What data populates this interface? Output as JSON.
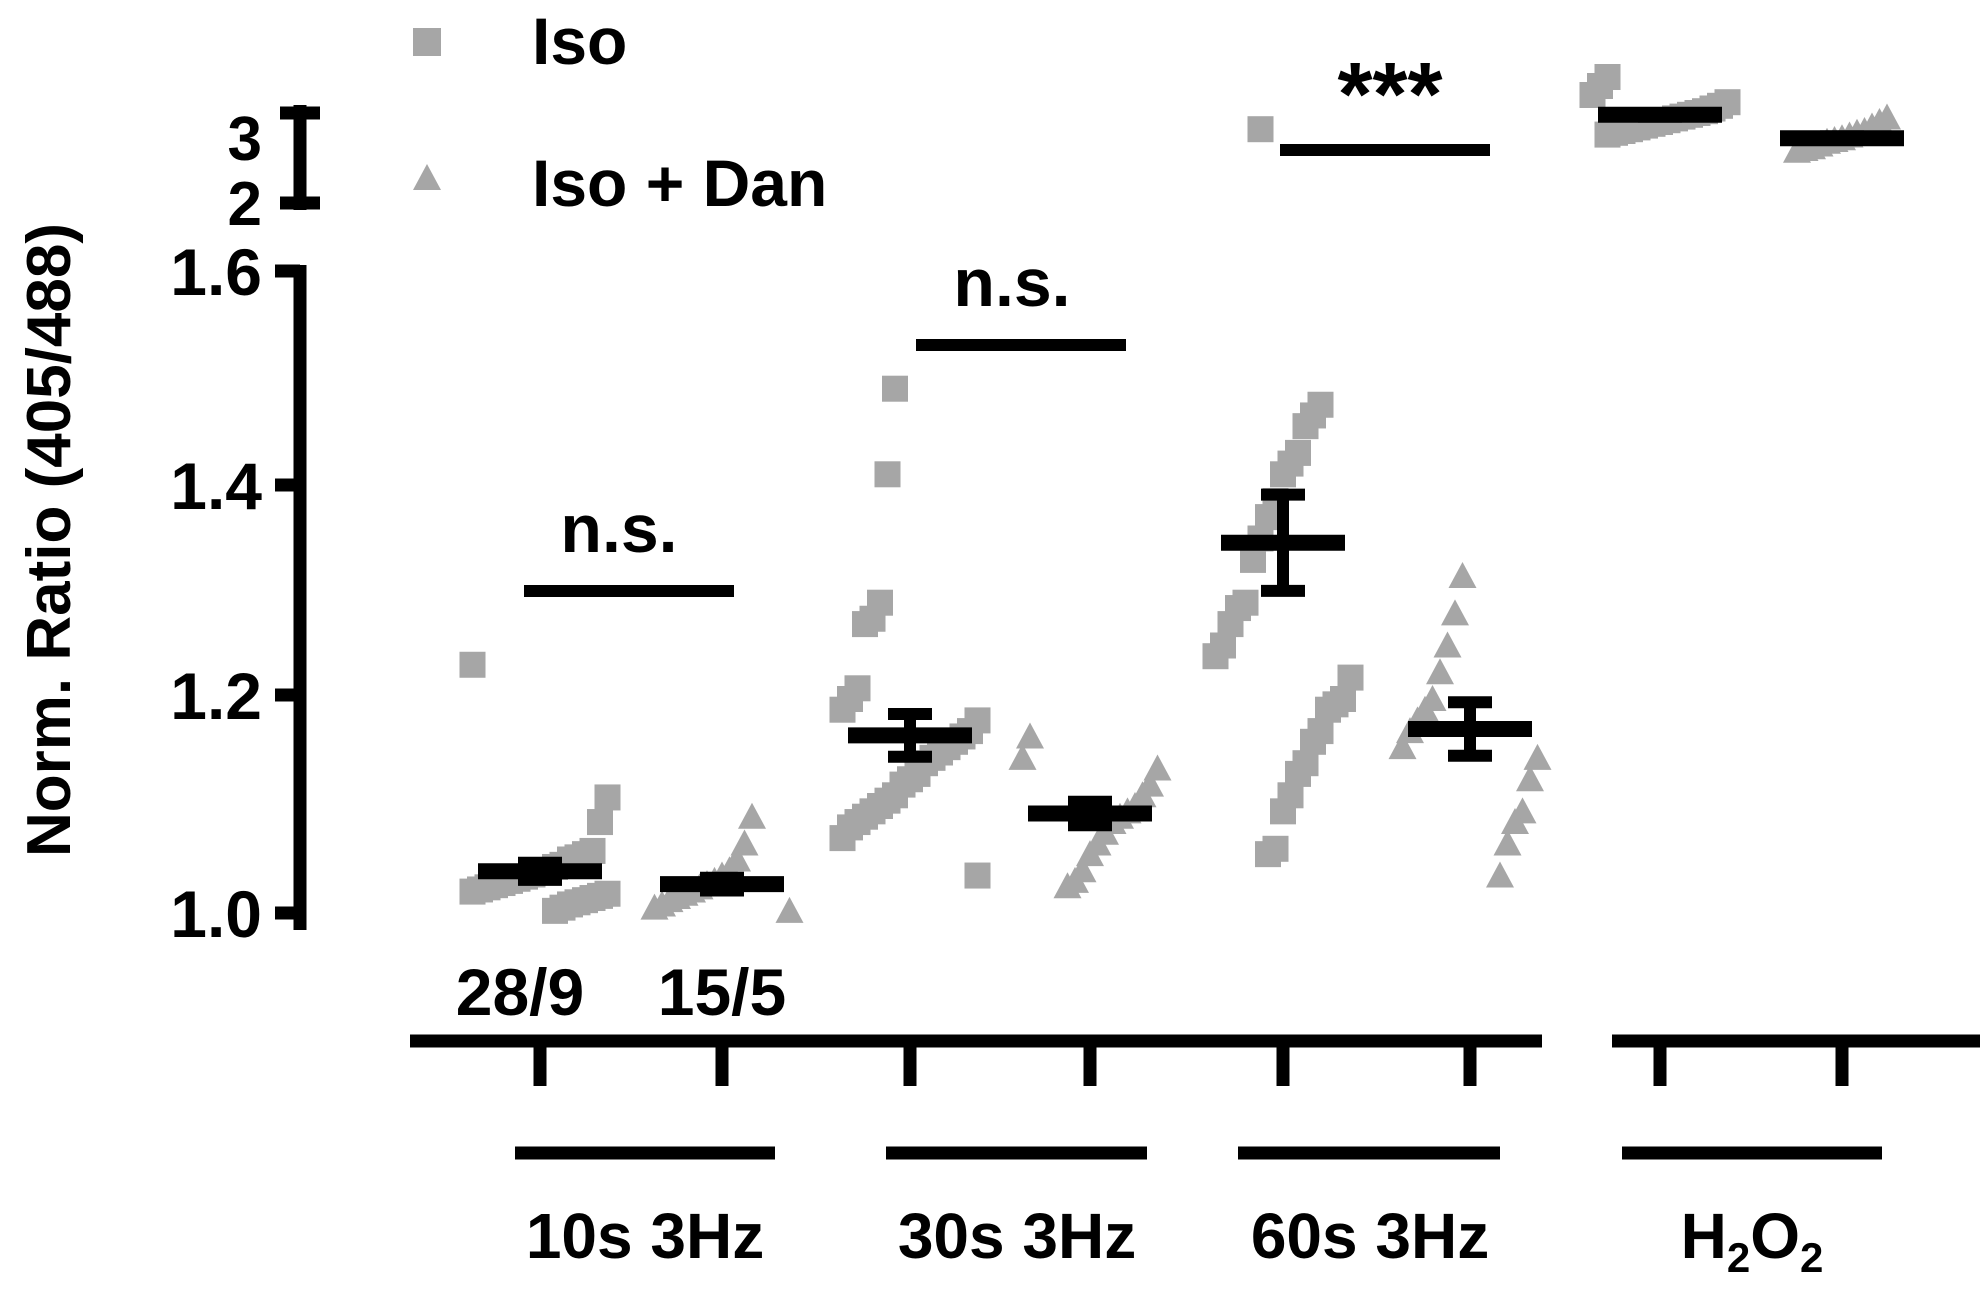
{
  "chart_data": {
    "type": "scatter",
    "ylabel": "Norm. Ratio (405/488)",
    "y_ticks_lower": [
      "1.0",
      "1.2",
      "1.4",
      "1.6"
    ],
    "y_ticks_upper": [
      "2",
      "3"
    ],
    "ylim_lower": [
      1.0,
      1.6
    ],
    "ylim_upper": [
      2,
      3
    ],
    "axis_break": true,
    "legend_position": "top-left",
    "legend": [
      {
        "name": "Iso",
        "marker": "square",
        "color": "#a6a6a6"
      },
      {
        "name": "Iso + Dan",
        "marker": "triangle",
        "color": "#a6a6a6"
      }
    ],
    "counts": [
      "28/9",
      "15/5"
    ],
    "groups": [
      {
        "label": "10s 3Hz",
        "significance": "n.s.",
        "bracket_y": 1.3
      },
      {
        "label": "30s 3Hz",
        "significance": "n.s.",
        "bracket_y": 1.536
      },
      {
        "label": "60s 3Hz",
        "significance": "***",
        "bracket_y_upper": 2.8
      },
      {
        "label_main": "H",
        "label_sub1": "2",
        "label_mid": "O",
        "label_sub2": "2",
        "significance": ""
      }
    ],
    "series": [
      {
        "name": "Iso",
        "group": 0,
        "marker": "square",
        "mean": 1.039,
        "sem": 0.008,
        "values": [
          1.232,
          1.108,
          1.085,
          1.058,
          1.055,
          1.052,
          1.05,
          1.045,
          1.043,
          1.04,
          1.038,
          1.036,
          1.034,
          1.032,
          1.03,
          1.028,
          1.026,
          1.024,
          1.022,
          1.02,
          1.018,
          1.016,
          1.014,
          1.012,
          1.01,
          1.008,
          1.005,
          1.002
        ]
      },
      {
        "name": "Iso + Dan",
        "group": 0,
        "marker": "triangle",
        "mean": 1.027,
        "sem": 0.006,
        "values": [
          1.09,
          1.065,
          1.05,
          1.04,
          1.035,
          1.03,
          1.027,
          1.024,
          1.021,
          1.018,
          1.015,
          1.012,
          1.008,
          1.005,
          1.002
        ]
      },
      {
        "name": "Iso",
        "group": 1,
        "marker": "square",
        "mean": 1.166,
        "sem": 0.02,
        "values": [
          1.49,
          1.41,
          1.29,
          1.275,
          1.27,
          1.21,
          1.2,
          1.19,
          1.18,
          1.17,
          1.165,
          1.16,
          1.155,
          1.15,
          1.145,
          1.14,
          1.13,
          1.125,
          1.12,
          1.11,
          1.105,
          1.1,
          1.095,
          1.09,
          1.085,
          1.08,
          1.07,
          1.035
        ]
      },
      {
        "name": "Iso + Dan",
        "group": 1,
        "marker": "triangle",
        "mean": 1.093,
        "sem": 0.011,
        "values": [
          1.165,
          1.145,
          1.135,
          1.12,
          1.11,
          1.1,
          1.095,
          1.09,
          1.085,
          1.075,
          1.065,
          1.055,
          1.04,
          1.03,
          1.025
        ]
      },
      {
        "name": "Iso",
        "group": 2,
        "marker": "square",
        "mean": 1.346,
        "sem": 0.045,
        "values": [
          1.475,
          1.465,
          1.455,
          1.43,
          1.42,
          1.41,
          1.385,
          1.37,
          1.35,
          1.33,
          1.29,
          1.285,
          1.27,
          1.25,
          1.24,
          1.22,
          1.2,
          1.195,
          1.19,
          1.17,
          1.16,
          1.14,
          1.13,
          1.11,
          1.095,
          1.06,
          1.055,
          2.82
        ]
      },
      {
        "name": "Iso + Dan",
        "group": 2,
        "marker": "triangle",
        "mean": 1.172,
        "sem": 0.025,
        "values": [
          1.315,
          1.28,
          1.25,
          1.225,
          1.2,
          1.19,
          1.18,
          1.17,
          1.155,
          1.145,
          1.125,
          1.095,
          1.085,
          1.065,
          1.035
        ]
      },
      {
        "name": "Iso",
        "group": 3,
        "marker": "square",
        "mean": 2.98,
        "sem": 0.02,
        "values": [
          3.4,
          3.3,
          3.2,
          3.12,
          3.08,
          3.05,
          3.02,
          3.0,
          2.98,
          2.96,
          2.94,
          2.92,
          2.9,
          2.88,
          2.86,
          2.84,
          2.82,
          2.8,
          2.78,
          2.76
        ]
      },
      {
        "name": "Iso + Dan",
        "group": 3,
        "marker": "triangle",
        "mean": 2.72,
        "sem": 0.02,
        "values": [
          2.95,
          2.9,
          2.85,
          2.8,
          2.78,
          2.75,
          2.72,
          2.7,
          2.68,
          2.65,
          2.62,
          2.6,
          2.58
        ]
      }
    ]
  }
}
